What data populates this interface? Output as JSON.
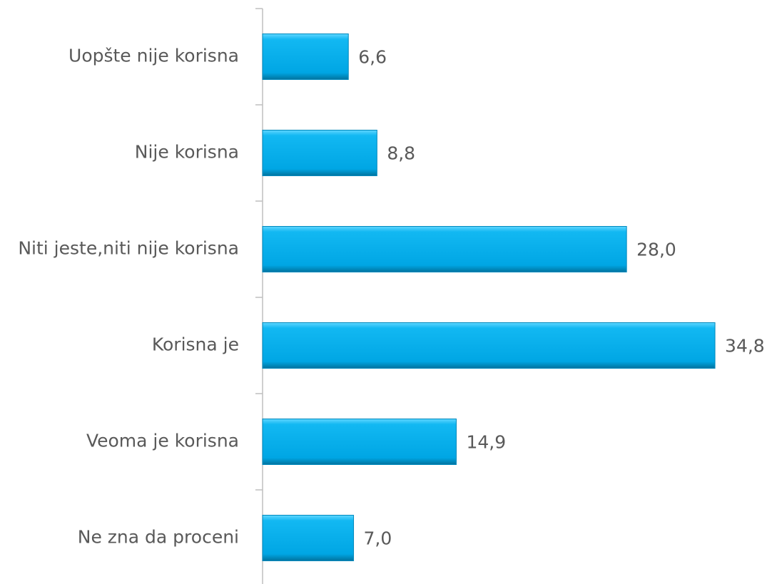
{
  "chart_data": {
    "type": "barh",
    "categories": [
      "Uopšte nije korisna",
      "Nije korisna",
      "Niti jeste,niti nije korisna",
      "Korisna je",
      "Veoma je korisna",
      "Ne zna da proceni"
    ],
    "values": [
      6.6,
      8.8,
      28.0,
      34.8,
      14.9,
      7.0
    ],
    "value_labels": [
      "6,6",
      "8,8",
      "28,0",
      "34,8",
      "14,9",
      "7,0"
    ],
    "color": "#00aeef"
  }
}
